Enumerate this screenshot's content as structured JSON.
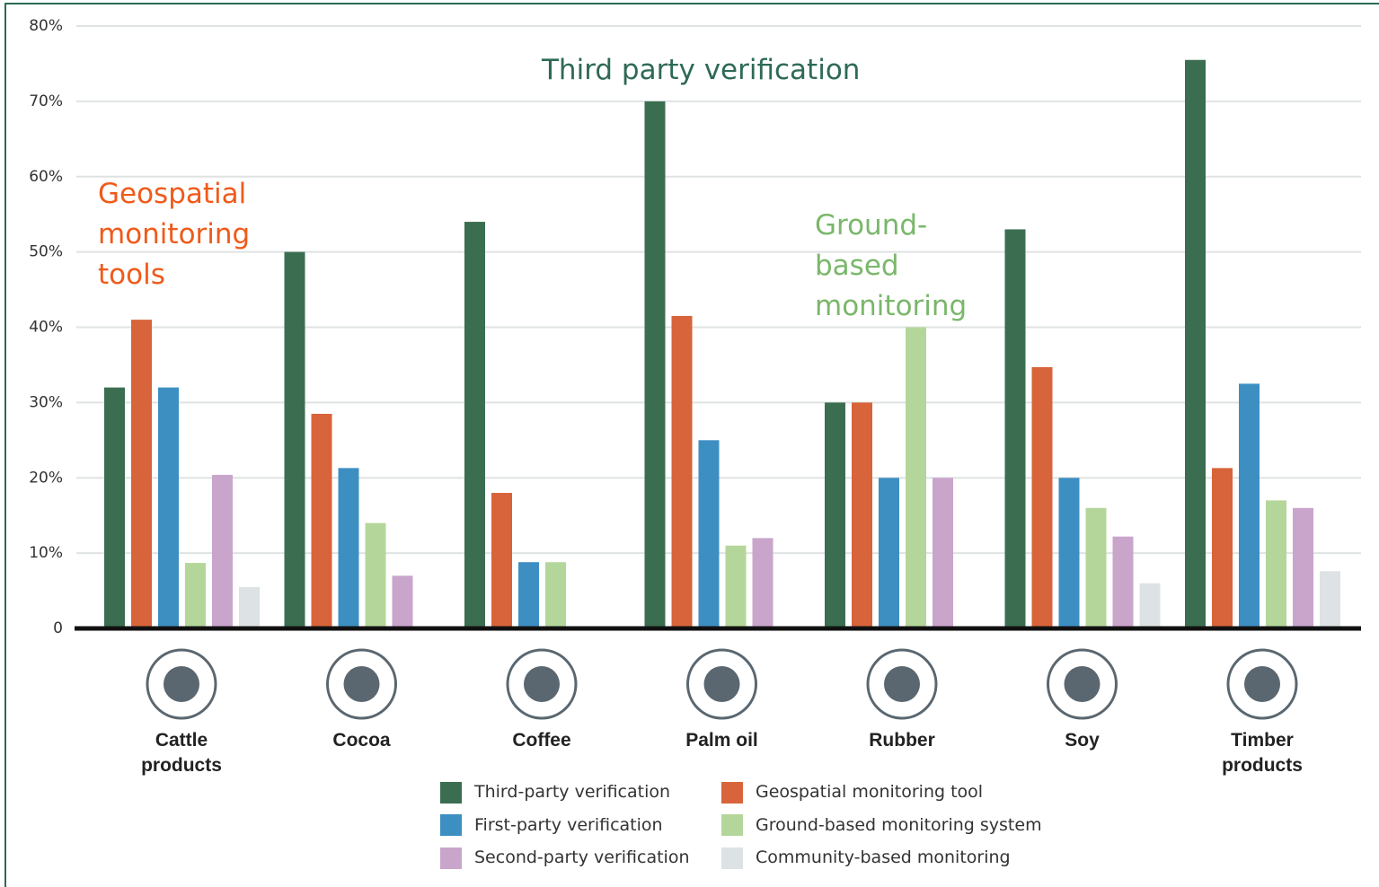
{
  "chart_data": {
    "type": "bar",
    "categories": [
      "Cattle products",
      "Cocoa",
      "Coffee",
      "Palm oil",
      "Rubber",
      "Soy",
      "Timber products"
    ],
    "series": [
      {
        "name": "Third-party verification",
        "color": "#3b6e51",
        "values": [
          32,
          50,
          54,
          70,
          30,
          53,
          75.5
        ]
      },
      {
        "name": "Geospatial monitoring tool",
        "color": "#d7643a",
        "values": [
          41,
          28.5,
          18,
          41.5,
          30,
          34.7,
          21.3
        ]
      },
      {
        "name": "First-party verification",
        "color": "#3d8fc2",
        "values": [
          32,
          21.3,
          8.8,
          25,
          20,
          20,
          32.5
        ]
      },
      {
        "name": "Ground-based monitoring system",
        "color": "#b5d69a",
        "values": [
          8.7,
          14,
          8.8,
          11,
          40,
          16,
          17
        ]
      },
      {
        "name": "Second-party verification",
        "color": "#c9a5cc",
        "values": [
          20.4,
          7,
          null,
          12,
          20,
          12.2,
          16
        ]
      },
      {
        "name": "Community-based monitoring",
        "color": "#dde2e4",
        "values": [
          5.5,
          null,
          null,
          null,
          null,
          6,
          7.6
        ]
      }
    ],
    "ylim": [
      0,
      80
    ],
    "yticks": [
      0,
      {
        "value": 10,
        "label": "10%"
      },
      {
        "value": 20,
        "label": "20%"
      },
      {
        "value": 30,
        "label": "30%"
      },
      {
        "value": 40,
        "label": "40%"
      },
      {
        "value": 50,
        "label": "50%"
      },
      {
        "value": 60,
        "label": "60%"
      },
      {
        "value": 70,
        "label": "70%"
      },
      {
        "value": 80,
        "label": "80%"
      }
    ],
    "grid": true,
    "annotations": [
      {
        "text": "Third party verification",
        "color": "#2e6a55"
      },
      {
        "text": "Geospatial monitoring tools",
        "color": "#f05a1a"
      },
      {
        "text": "Ground-based monitoring",
        "color": "#7ab76a"
      }
    ]
  }
}
